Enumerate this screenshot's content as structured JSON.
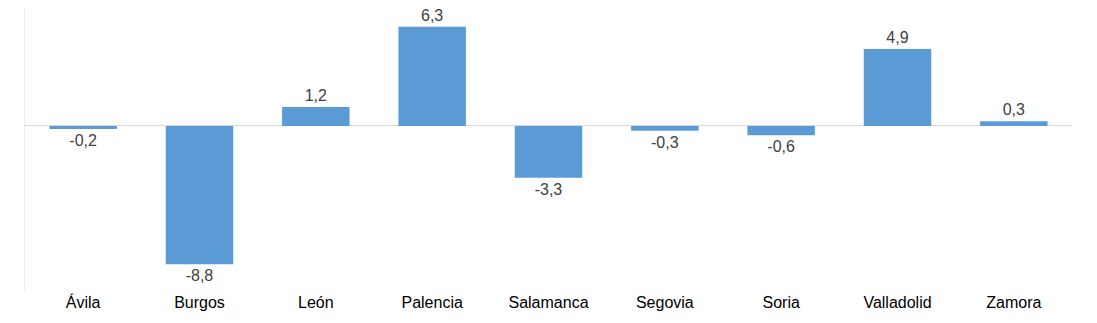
{
  "chart_data": {
    "type": "bar",
    "categories": [
      "Ávila",
      "Burgos",
      "León",
      "Palencia",
      "Salamanca",
      "Segovia",
      "Soria",
      "Valladolid",
      "Zamora"
    ],
    "values": [
      -0.2,
      -8.8,
      1.2,
      6.3,
      -3.3,
      -0.3,
      -0.6,
      4.9,
      0.3
    ],
    "value_labels": [
      "-0,2",
      "-8,8",
      "1,2",
      "6,3",
      "-3,3",
      "-0,3",
      "-0,6",
      "4,9",
      "0,3"
    ],
    "color": "#5b9bd5",
    "ylim": [
      -10.5,
      7.5
    ],
    "data_labels": true,
    "tick_labels": "x",
    "grid": false
  }
}
